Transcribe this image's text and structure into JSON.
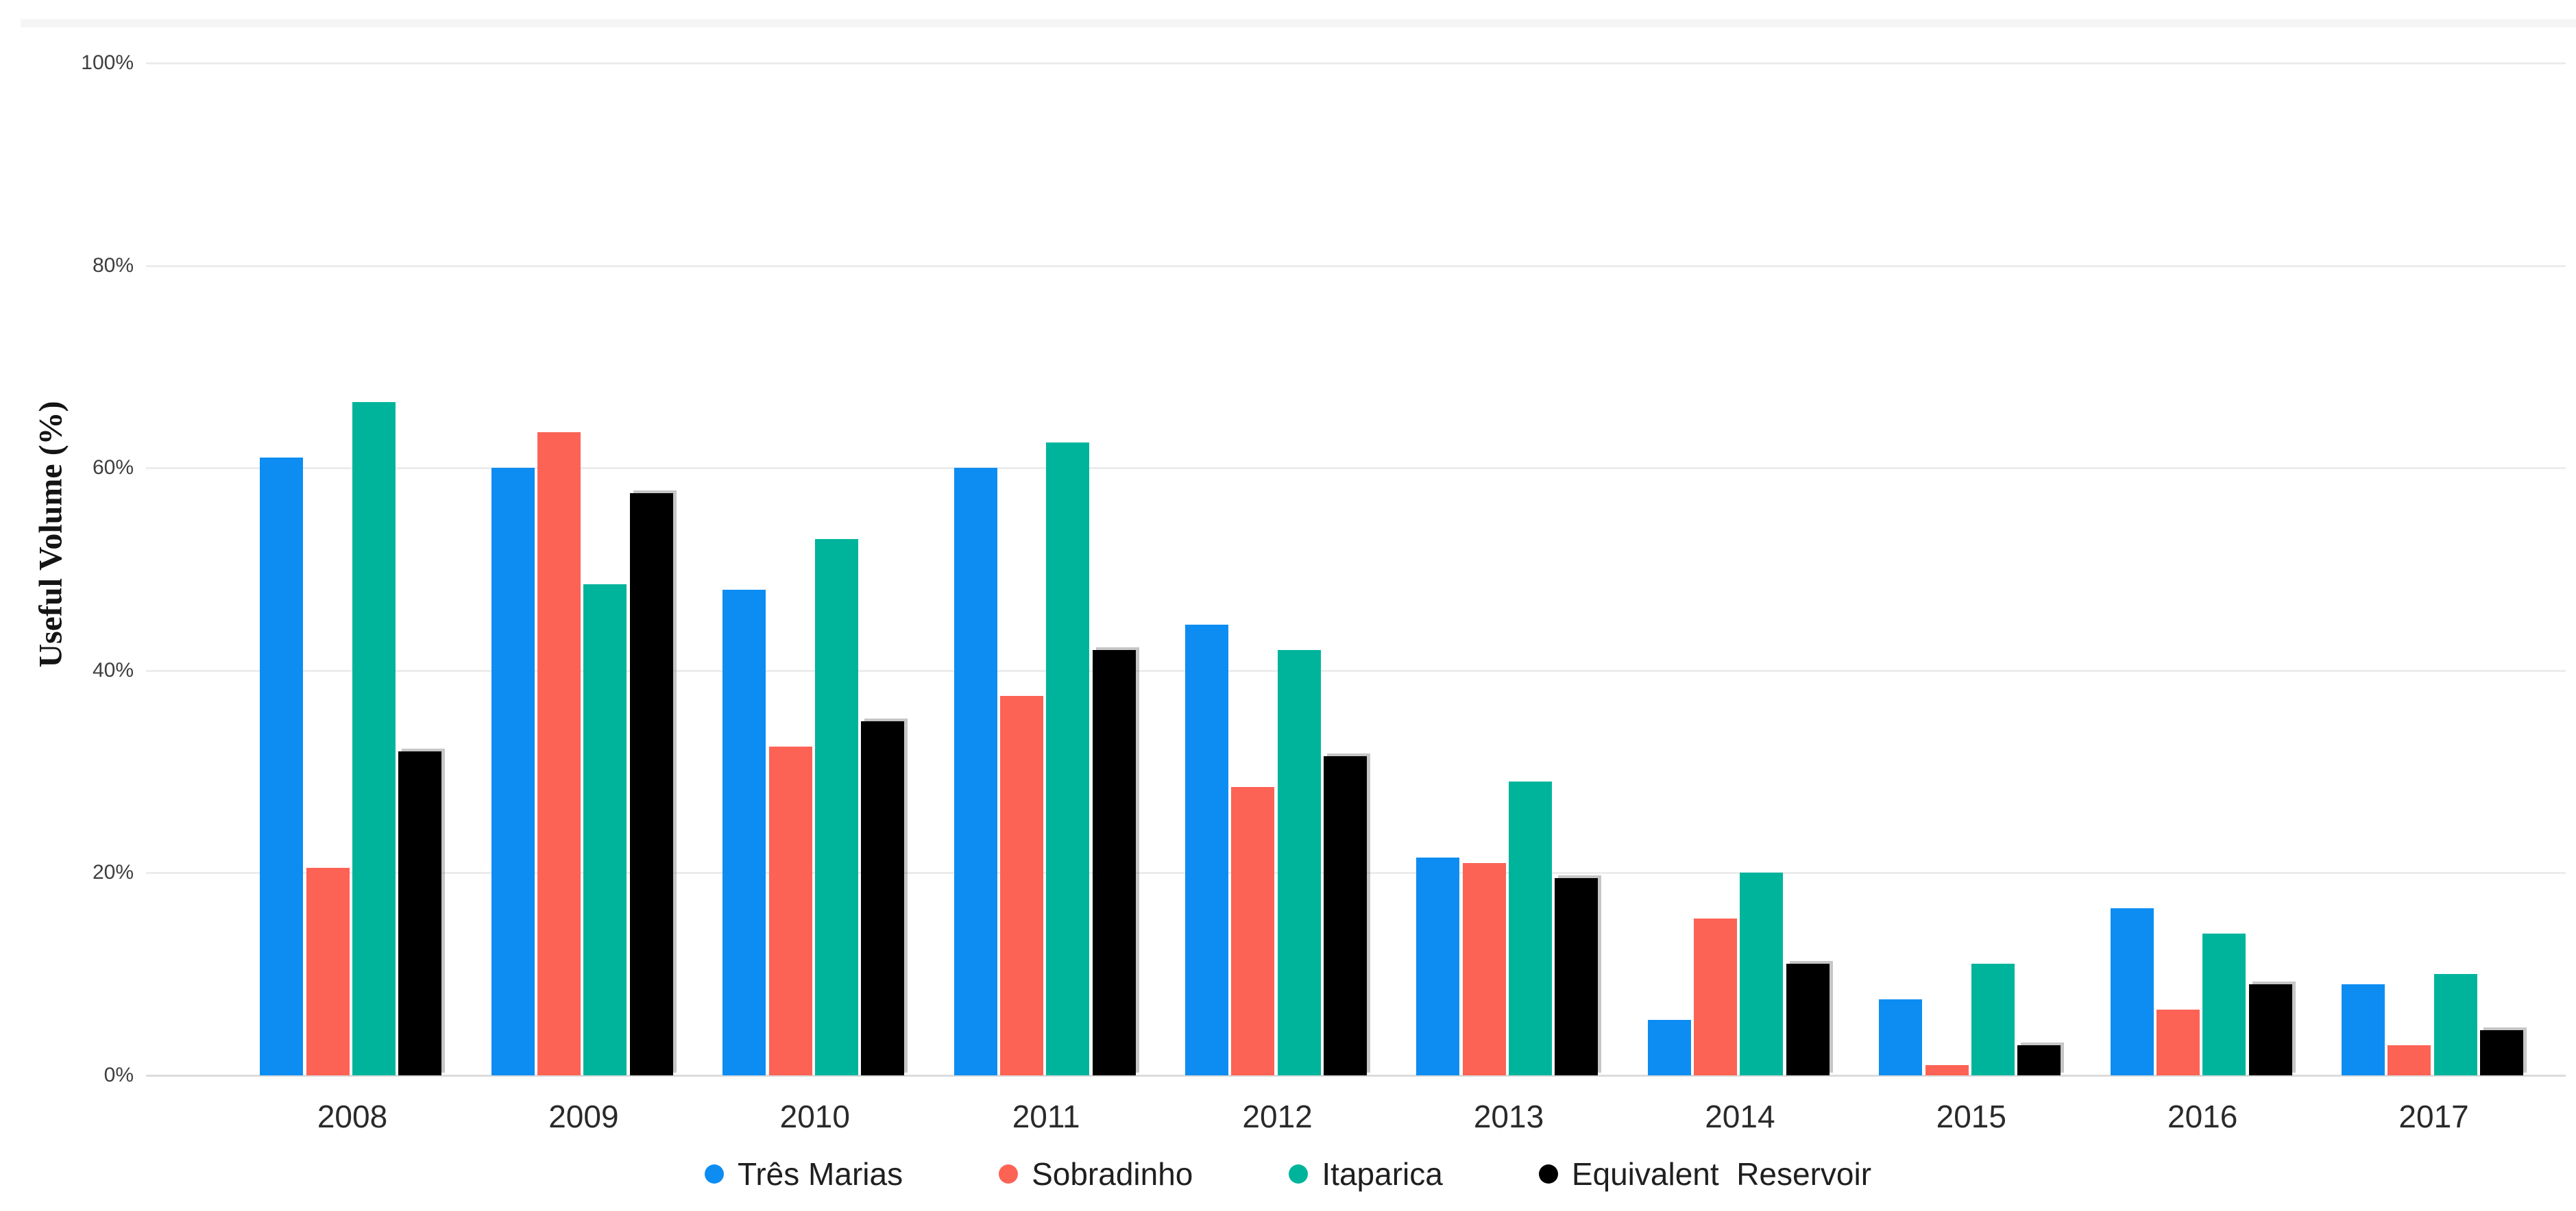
{
  "chart_data": {
    "type": "bar",
    "title": "",
    "xlabel": "",
    "ylabel": "Useful Volume (%)",
    "ylim": [
      0,
      100
    ],
    "grid": true,
    "legend_position": "bottom",
    "categories": [
      "2008",
      "2009",
      "2010",
      "2011",
      "2012",
      "2013",
      "2014",
      "2015",
      "2016",
      "2017"
    ],
    "series": [
      {
        "name": "Três Marias",
        "color": "#0d8df2",
        "values": [
          61,
          60,
          48,
          60,
          44.5,
          21.5,
          5.5,
          7.5,
          16.5,
          9
        ]
      },
      {
        "name": "Sobradinho",
        "color": "#fc6355",
        "values": [
          20.5,
          63.5,
          32.5,
          37.5,
          28.5,
          21,
          15.5,
          1,
          6.5,
          3
        ]
      },
      {
        "name": "Itaparica",
        "color": "#00b49c",
        "values": [
          66.5,
          48.5,
          53,
          62.5,
          42,
          29,
          20,
          11,
          14,
          10
        ]
      },
      {
        "name": "Equivalent  Reservoir",
        "color": "#000000",
        "values": [
          32,
          57.5,
          35,
          42,
          31.5,
          19.5,
          11,
          3,
          9,
          4.5
        ]
      }
    ],
    "yticks": [
      {
        "label": "0%",
        "value": 0
      },
      {
        "label": "20%",
        "value": 20
      },
      {
        "label": "40%",
        "value": 40
      },
      {
        "label": "60%",
        "value": 60
      },
      {
        "label": "80%",
        "value": 80
      },
      {
        "label": "100%",
        "value": 100
      }
    ]
  }
}
